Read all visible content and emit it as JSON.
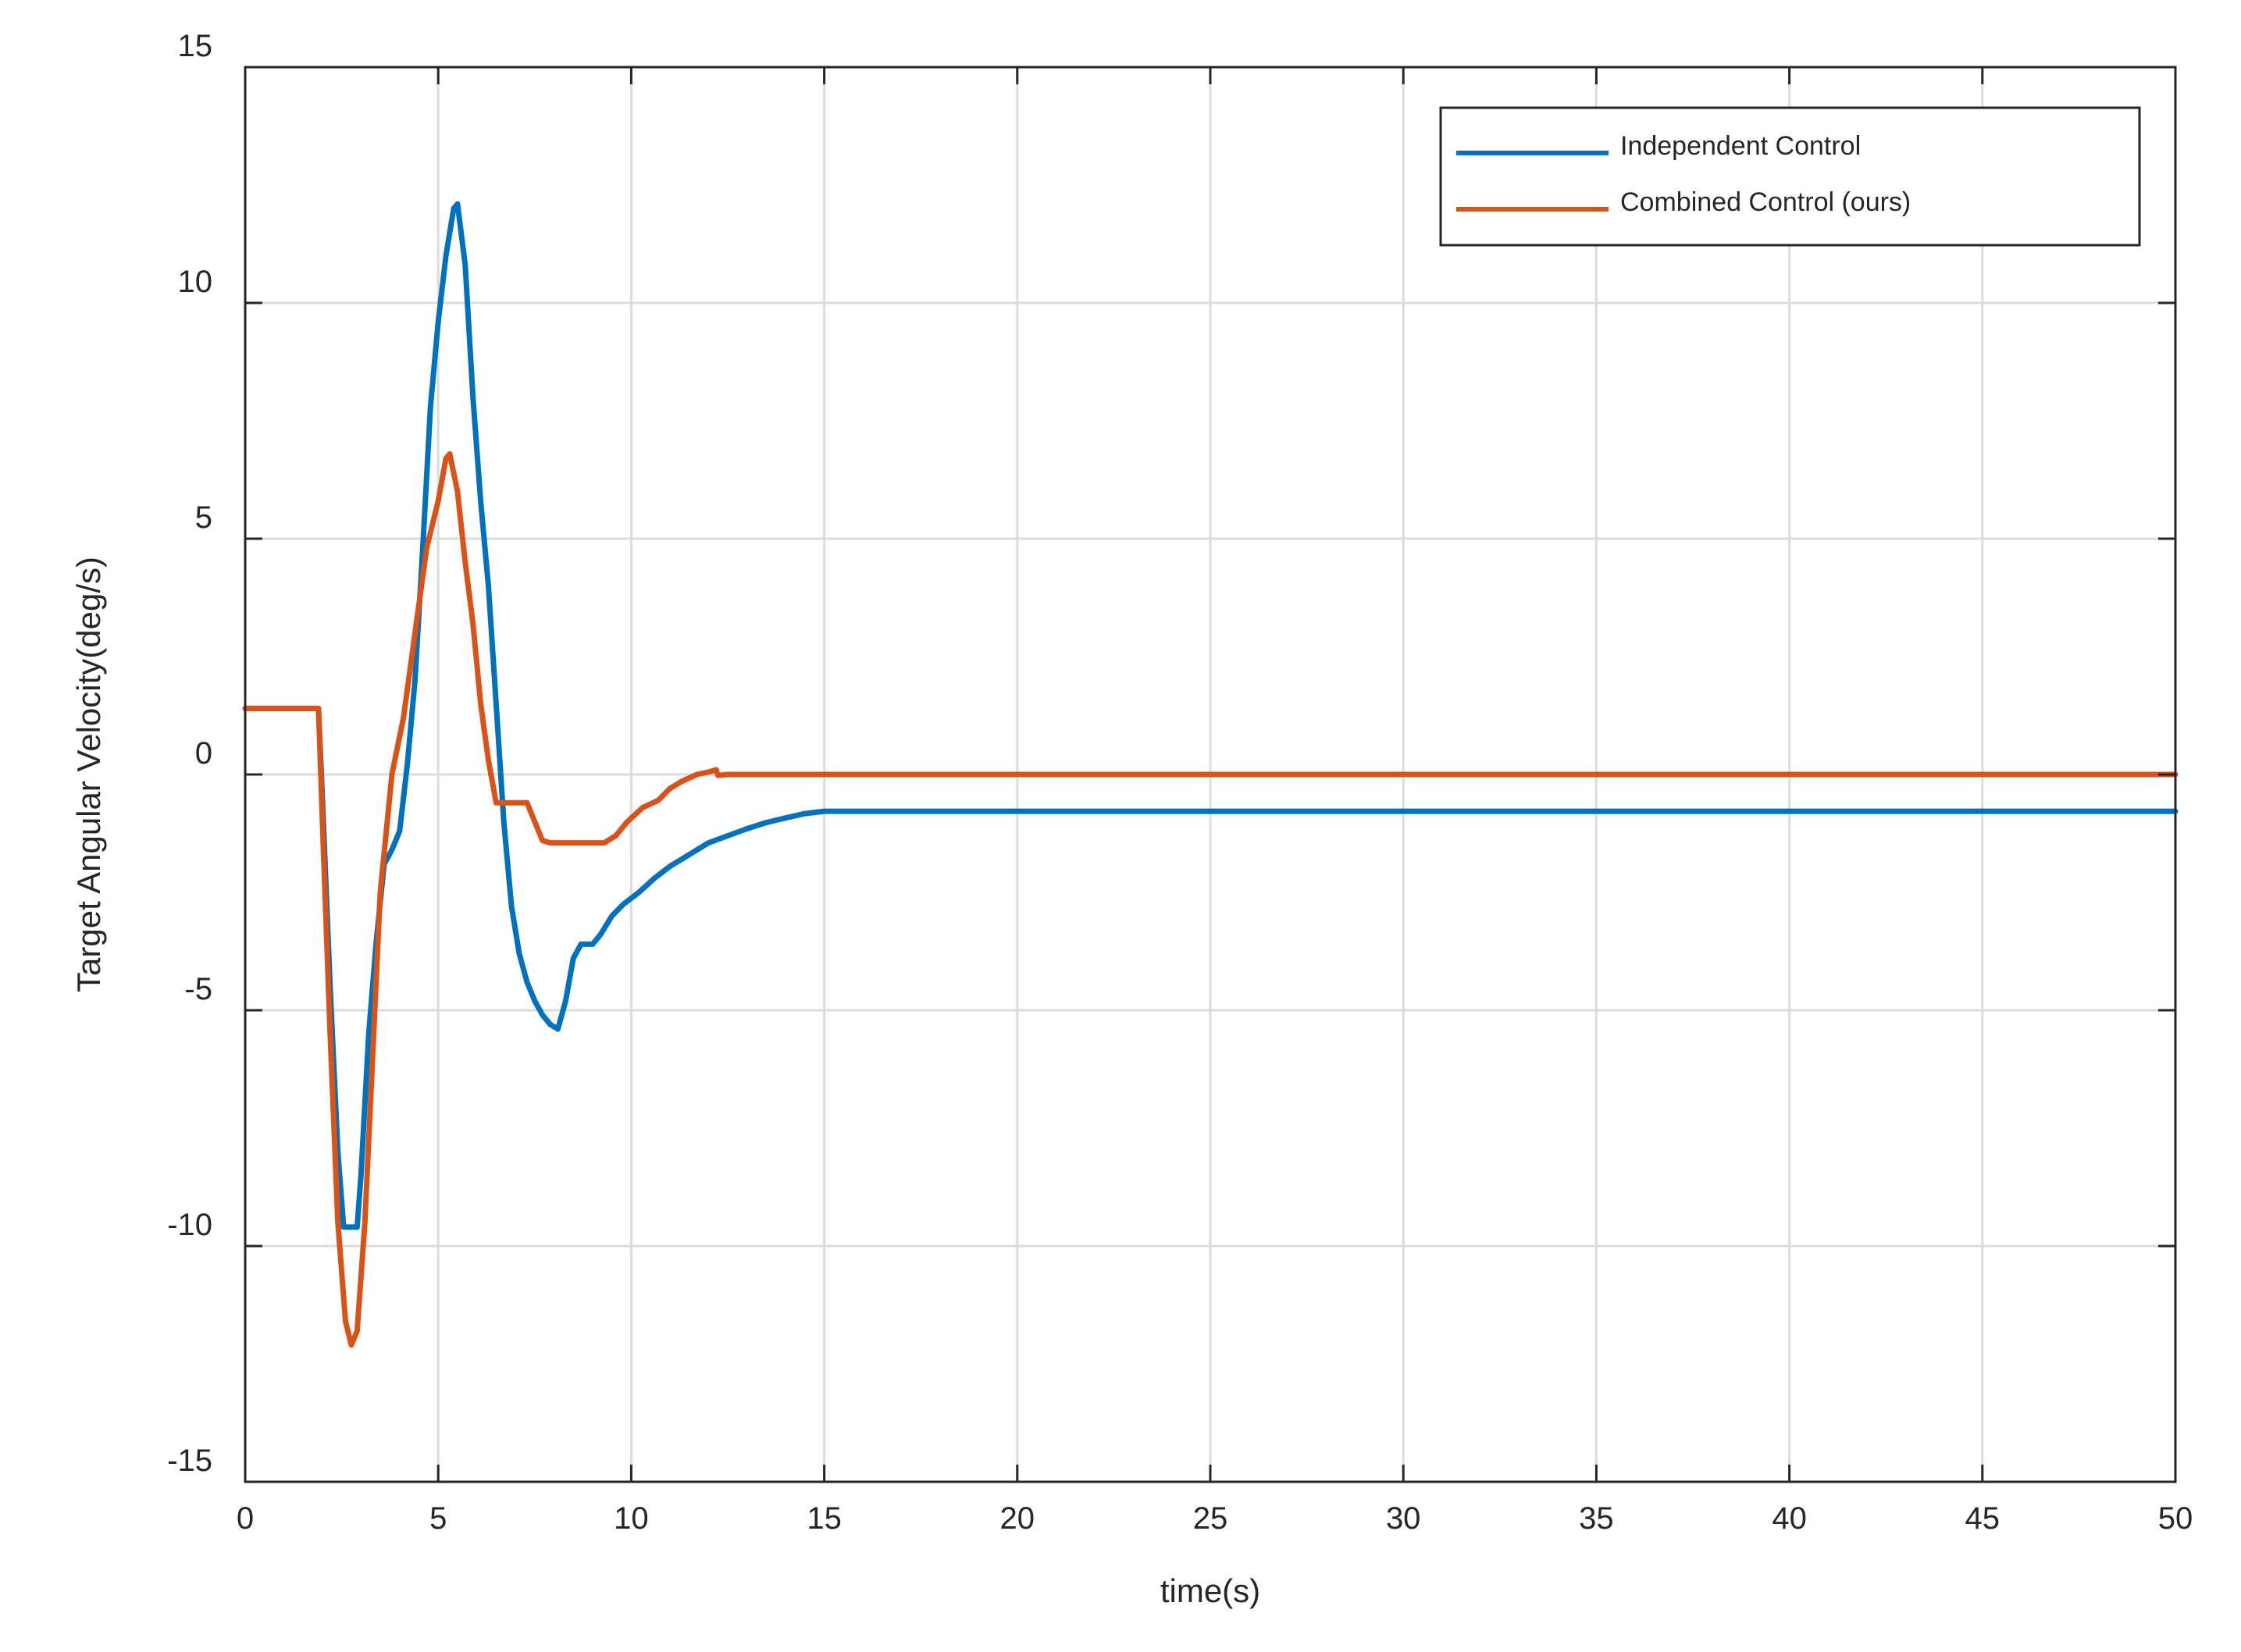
{
  "chart_data": {
    "type": "line",
    "title": "",
    "xlabel": "time(s)",
    "ylabel": "Target Angular Velocity(deg/s)",
    "xlim": [
      0,
      50
    ],
    "ylim": [
      -15,
      15
    ],
    "xticks": [
      0,
      5,
      10,
      15,
      20,
      25,
      30,
      35,
      40,
      45,
      50
    ],
    "yticks": [
      -15,
      -10,
      -5,
      0,
      5,
      10,
      15
    ],
    "xtick_labels": [
      "0",
      "5",
      "10",
      "15",
      "20",
      "25",
      "30",
      "35",
      "40",
      "45",
      "50"
    ],
    "ytick_labels": [
      "-15",
      "-10",
      "-5",
      "0",
      "5",
      "10",
      "15"
    ],
    "grid": true,
    "legend_position": "top-right",
    "series": [
      {
        "name": "Independent Control",
        "color": "#0072BD",
        "x": [
          0,
          1.9,
          2.0,
          2.2,
          2.4,
          2.55,
          2.6,
          2.9,
          3.0,
          3.2,
          3.4,
          3.6,
          3.8,
          4.0,
          4.2,
          4.4,
          4.6,
          4.8,
          5.0,
          5.2,
          5.4,
          5.5,
          5.7,
          5.9,
          6.1,
          6.3,
          6.5,
          6.7,
          6.9,
          7.1,
          7.3,
          7.5,
          7.7,
          7.9,
          8.1,
          8.3,
          8.5,
          8.7,
          9.0,
          9.2,
          9.5,
          9.8,
          10.2,
          10.6,
          11.0,
          11.5,
          12.0,
          12.5,
          13.0,
          13.5,
          14.0,
          14.5,
          15.0,
          16.0,
          20,
          25,
          30,
          35,
          40,
          45,
          50
        ],
        "y": [
          1.4,
          1.4,
          -0.5,
          -4.5,
          -8.0,
          -9.6,
          -9.6,
          -9.6,
          -8.5,
          -5.5,
          -3.5,
          -1.9,
          -1.6,
          -1.2,
          0.2,
          2.0,
          4.8,
          7.8,
          9.6,
          11.0,
          12.0,
          12.1,
          10.8,
          8.0,
          5.8,
          4.0,
          1.5,
          -1.0,
          -2.8,
          -3.8,
          -4.4,
          -4.8,
          -5.1,
          -5.3,
          -5.4,
          -4.8,
          -3.9,
          -3.6,
          -3.6,
          -3.4,
          -3.0,
          -2.75,
          -2.5,
          -2.2,
          -1.95,
          -1.7,
          -1.45,
          -1.3,
          -1.15,
          -1.02,
          -0.92,
          -0.83,
          -0.78,
          -0.78,
          -0.78,
          -0.78,
          -0.78,
          -0.78,
          -0.78,
          -0.78,
          -0.78
        ]
      },
      {
        "name": "Combined Control (ours)",
        "color": "#D95319",
        "x": [
          0,
          1.9,
          2.0,
          2.2,
          2.4,
          2.6,
          2.75,
          2.9,
          3.1,
          3.3,
          3.5,
          3.8,
          4.1,
          4.4,
          4.7,
          5.0,
          5.2,
          5.3,
          5.5,
          5.7,
          5.9,
          6.1,
          6.3,
          6.5,
          6.7,
          7.0,
          7.3,
          7.5,
          7.7,
          7.9,
          8.1,
          8.5,
          9.0,
          9.3,
          9.6,
          9.9,
          10.3,
          10.7,
          11.0,
          11.3,
          11.7,
          12.0,
          12.2,
          12.25,
          12.5,
          13.0,
          14.0,
          20,
          25,
          30,
          35,
          40,
          45,
          50
        ],
        "y": [
          1.4,
          1.4,
          -1.0,
          -5.5,
          -9.5,
          -11.6,
          -12.1,
          -11.8,
          -9.5,
          -6.0,
          -2.5,
          0.0,
          1.2,
          3.0,
          4.8,
          5.8,
          6.7,
          6.8,
          6.0,
          4.5,
          3.2,
          1.5,
          0.3,
          -0.6,
          -0.6,
          -0.6,
          -0.6,
          -1.0,
          -1.4,
          -1.45,
          -1.45,
          -1.45,
          -1.45,
          -1.45,
          -1.3,
          -1.0,
          -0.7,
          -0.55,
          -0.3,
          -0.15,
          0.0,
          0.05,
          0.1,
          -0.02,
          0.0,
          0.0,
          0.0,
          0.0,
          0.0,
          0.0,
          0.0,
          0.0,
          0.0,
          0.0
        ]
      }
    ]
  }
}
